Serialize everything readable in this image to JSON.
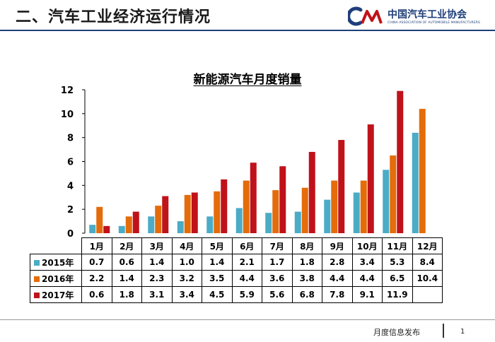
{
  "slide": {
    "title": "二、汽车工业经济运行情况",
    "footer": "月度信息发布",
    "page_number": "1"
  },
  "logo": {
    "mark": "CM",
    "name_cn": "中国汽车工业协会",
    "name_en": "CHINA ASSOCIATION OF AUTOMOBILE MANUFACTURERS"
  },
  "colors": {
    "series": [
      "#4bacc6",
      "#e46c0a",
      "#c0121a"
    ],
    "header_rule": "#1f3f7a"
  },
  "chart_data": {
    "type": "bar",
    "title": "新能源汽车月度销量",
    "categories": [
      "1月",
      "2月",
      "3月",
      "4月",
      "5月",
      "6月",
      "7月",
      "8月",
      "9月",
      "10月",
      "11月",
      "12月"
    ],
    "series": [
      {
        "name": "2015年",
        "values": [
          0.7,
          0.6,
          1.4,
          1.0,
          1.4,
          2.1,
          1.7,
          1.8,
          2.8,
          3.4,
          5.3,
          8.4
        ]
      },
      {
        "name": "2016年",
        "values": [
          2.2,
          1.4,
          2.3,
          3.2,
          3.5,
          4.4,
          3.6,
          3.8,
          4.4,
          4.4,
          6.5,
          10.4
        ]
      },
      {
        "name": "2017年",
        "values": [
          0.6,
          1.8,
          3.1,
          3.4,
          4.5,
          5.9,
          5.6,
          6.8,
          7.8,
          9.1,
          11.9,
          null
        ]
      }
    ],
    "ylim": [
      0,
      12
    ],
    "yticks": [
      "0",
      "2",
      "4",
      "6",
      "8",
      "10",
      "12"
    ],
    "table_values": [
      [
        "0.7",
        "0.6",
        "1.4",
        "1.0",
        "1.4",
        "2.1",
        "1.7",
        "1.8",
        "2.8",
        "3.4",
        "5.3",
        "8.4"
      ],
      [
        "2.2",
        "1.4",
        "2.3",
        "3.2",
        "3.5",
        "4.4",
        "3.6",
        "3.8",
        "4.4",
        "4.4",
        "6.5",
        "10.4"
      ],
      [
        "0.6",
        "1.8",
        "3.1",
        "3.4",
        "4.5",
        "5.9",
        "5.6",
        "6.8",
        "7.8",
        "9.1",
        "11.9",
        ""
      ]
    ],
    "grid": false,
    "legend": "data table below chart"
  }
}
